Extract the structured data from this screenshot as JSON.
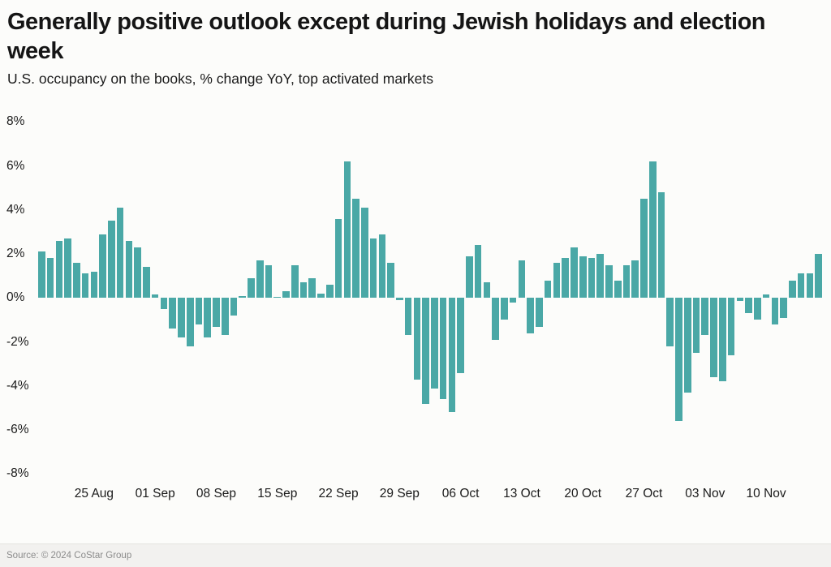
{
  "header": {
    "title": "Generally positive outlook except during Jewish holidays and election week",
    "subtitle": "U.S. occupancy on the books, % change YoY, top activated markets"
  },
  "footer": {
    "source": "Source: © 2024 CoStar Group"
  },
  "colors": {
    "bar": "#4AA8A6",
    "title_text": "#151515",
    "axis_text": "#1b1b1b",
    "source_text": "#8b8b8b",
    "background": "#fcfcfa"
  },
  "chart_data": {
    "type": "bar",
    "title": "Generally positive outlook except during Jewish holidays and election week",
    "subtitle": "U.S. occupancy on the books, % change YoY, top activated markets",
    "xlabel": "",
    "ylabel": "% change YoY",
    "ylim": [
      -8,
      8
    ],
    "grid": false,
    "legend": false,
    "bar_color": "#4AA8A6",
    "y_ticks": [
      8,
      6,
      4,
      2,
      0,
      -2,
      -4,
      -6,
      -8
    ],
    "y_tick_labels": [
      "8%",
      "6%",
      "4%",
      "2%",
      "0%",
      "-2%",
      "-4%",
      "-6%",
      "-8%"
    ],
    "x_tick_labels": [
      "25 Aug",
      "01 Sep",
      "08 Sep",
      "15 Sep",
      "22 Sep",
      "29 Sep",
      "06 Oct",
      "13 Oct",
      "20 Oct",
      "27 Oct",
      "03 Nov",
      "10 Nov"
    ],
    "x_tick_indices": [
      6,
      13,
      20,
      27,
      34,
      41,
      48,
      55,
      62,
      69,
      76,
      83
    ],
    "categories": [
      "19 Aug",
      "20 Aug",
      "21 Aug",
      "22 Aug",
      "23 Aug",
      "24 Aug",
      "25 Aug",
      "26 Aug",
      "27 Aug",
      "28 Aug",
      "29 Aug",
      "30 Aug",
      "31 Aug",
      "01 Sep",
      "02 Sep",
      "03 Sep",
      "04 Sep",
      "05 Sep",
      "06 Sep",
      "07 Sep",
      "08 Sep",
      "09 Sep",
      "10 Sep",
      "11 Sep",
      "12 Sep",
      "13 Sep",
      "14 Sep",
      "15 Sep",
      "16 Sep",
      "17 Sep",
      "18 Sep",
      "19 Sep",
      "20 Sep",
      "21 Sep",
      "22 Sep",
      "23 Sep",
      "24 Sep",
      "25 Sep",
      "26 Sep",
      "27 Sep",
      "28 Sep",
      "29 Sep",
      "30 Sep",
      "01 Oct",
      "02 Oct",
      "03 Oct",
      "04 Oct",
      "05 Oct",
      "06 Oct",
      "07 Oct",
      "08 Oct",
      "09 Oct",
      "10 Oct",
      "11 Oct",
      "12 Oct",
      "13 Oct",
      "14 Oct",
      "15 Oct",
      "16 Oct",
      "17 Oct",
      "18 Oct",
      "19 Oct",
      "20 Oct",
      "21 Oct",
      "22 Oct",
      "23 Oct",
      "24 Oct",
      "25 Oct",
      "26 Oct",
      "27 Oct",
      "28 Oct",
      "29 Oct",
      "30 Oct",
      "31 Oct",
      "01 Nov",
      "02 Nov",
      "03 Nov",
      "04 Nov",
      "05 Nov",
      "06 Nov",
      "07 Nov",
      "08 Nov",
      "09 Nov",
      "10 Nov",
      "11 Nov",
      "12 Nov",
      "13 Nov",
      "14 Nov",
      "15 Nov",
      "16 Nov"
    ],
    "values": [
      2.1,
      1.8,
      2.6,
      2.7,
      1.6,
      1.1,
      1.2,
      2.9,
      3.5,
      4.1,
      2.6,
      2.3,
      1.4,
      0.15,
      -0.5,
      -1.4,
      -1.8,
      -2.2,
      -1.2,
      -1.8,
      -1.3,
      -1.7,
      -0.8,
      0.1,
      0.9,
      1.7,
      1.5,
      0.05,
      0.3,
      1.5,
      0.7,
      0.9,
      0.2,
      0.6,
      3.6,
      6.2,
      4.5,
      4.1,
      2.7,
      2.9,
      1.6,
      -0.1,
      -1.7,
      -3.7,
      -4.8,
      -4.1,
      -4.6,
      -5.2,
      -3.4,
      1.9,
      2.4,
      0.7,
      -1.9,
      -1.0,
      -0.2,
      1.7,
      -1.6,
      -1.3,
      0.8,
      1.6,
      1.8,
      2.3,
      1.9,
      1.8,
      2.0,
      1.5,
      0.8,
      1.5,
      1.7,
      4.5,
      6.2,
      4.8,
      -2.2,
      -5.6,
      -4.3,
      -2.5,
      -1.7,
      -3.6,
      -3.8,
      -2.6,
      -0.15,
      -0.7,
      -1.0,
      0.15,
      -1.2,
      -0.9,
      0.8,
      1.1,
      1.1,
      2.0
    ]
  }
}
